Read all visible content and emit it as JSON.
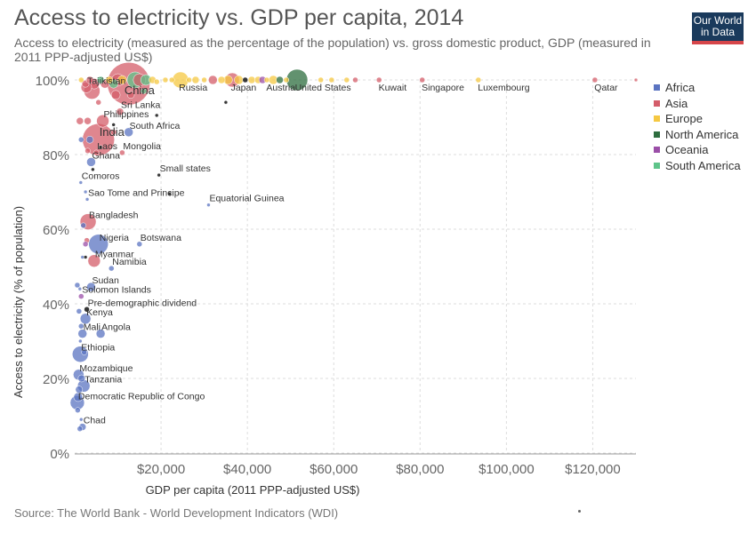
{
  "title": "Access to electricity vs. GDP per capita, 2014",
  "subtitle": "Access to electricity (measured as the percentage of the population) vs. gross domestic product, GDP (measured in 2011 PPP-adjusted US$)",
  "logo": {
    "line1": "Our World",
    "line2": "in Data"
  },
  "source": "Source: The World Bank - World Development Indicators (WDI)",
  "colors": {
    "Africa": "#5b74c1",
    "Asia": "#d45d6a",
    "Europe": "#f5c842",
    "North America": "#2e6e3f",
    "Oceania": "#9b4fa8",
    "South America": "#5ec48a",
    "Other": "#222222"
  },
  "chart_data": {
    "type": "scatter",
    "title": "Access to electricity vs. GDP per capita, 2014",
    "xlabel": "GDP per capita (2011 PPP-adjusted US$)",
    "ylabel": "Access to electricity (% of population)",
    "xlim": [
      0,
      130000
    ],
    "ylim": [
      0,
      100
    ],
    "xticks": [
      20000,
      40000,
      60000,
      80000,
      100000,
      120000
    ],
    "xtick_labels": [
      "$20,000",
      "$40,000",
      "$60,000",
      "$80,000",
      "$100,000",
      "$120,000"
    ],
    "yticks": [
      0,
      20,
      40,
      60,
      80,
      100
    ],
    "ytick_labels": [
      "0%",
      "20%",
      "40%",
      "60%",
      "80%",
      "100%"
    ],
    "legend": {
      "position": "right",
      "entries": [
        "Africa",
        "Asia",
        "Europe",
        "North America",
        "Oceania",
        "South America"
      ]
    },
    "labeled_points": [
      {
        "label": "Tajikistan",
        "x": 2700,
        "y": 98,
        "region": "Asia",
        "size": 6
      },
      {
        "label": "China",
        "x": 12500,
        "y": 99,
        "region": "Asia",
        "size": 24
      },
      {
        "label": "Russia",
        "x": 24500,
        "y": 100,
        "region": "Europe",
        "size": 9
      },
      {
        "label": "Japan",
        "x": 36500,
        "y": 100,
        "region": "Asia",
        "size": 8
      },
      {
        "label": "Austria",
        "x": 44500,
        "y": 100,
        "region": "Europe",
        "size": 3
      },
      {
        "label": "United States",
        "x": 51500,
        "y": 100,
        "region": "North America",
        "size": 12
      },
      {
        "label": "Kuwait",
        "x": 70500,
        "y": 100,
        "region": "Asia",
        "size": 3
      },
      {
        "label": "Singapore",
        "x": 80500,
        "y": 100,
        "region": "Asia",
        "size": 3
      },
      {
        "label": "Luxembourg",
        "x": 93500,
        "y": 100,
        "region": "Europe",
        "size": 3
      },
      {
        "label": "Qatar",
        "x": 120500,
        "y": 100,
        "region": "Asia",
        "size": 3
      },
      {
        "label": "Sri Lanka",
        "x": 10500,
        "y": 91.5,
        "region": "Asia",
        "size": 4
      },
      {
        "label": "Philippines",
        "x": 6500,
        "y": 89,
        "region": "Asia",
        "size": 7
      },
      {
        "label": "South Africa",
        "x": 12500,
        "y": 86,
        "region": "Africa",
        "size": 5
      },
      {
        "label": "India",
        "x": 5500,
        "y": 84,
        "region": "Asia",
        "size": 18
      },
      {
        "label": "Laos",
        "x": 5000,
        "y": 80.5,
        "region": "Asia",
        "size": 3
      },
      {
        "label": "Mongolia",
        "x": 11000,
        "y": 80.5,
        "region": "Asia",
        "size": 3
      },
      {
        "label": "Ghana",
        "x": 3800,
        "y": 78,
        "region": "Africa",
        "size": 5
      },
      {
        "label": "Small states",
        "x": 19500,
        "y": 74.5,
        "region": "Other",
        "size": 2
      },
      {
        "label": "Comoros",
        "x": 1400,
        "y": 72.5,
        "region": "Africa",
        "size": 2
      },
      {
        "label": "Sao Tome and Principe",
        "x": 2900,
        "y": 68,
        "region": "Africa",
        "size": 2
      },
      {
        "label": "Equatorial Guinea",
        "x": 31000,
        "y": 66.5,
        "region": "Africa",
        "size": 2
      },
      {
        "label": "Bangladesh",
        "x": 3100,
        "y": 62,
        "region": "Asia",
        "size": 9
      },
      {
        "label": "Botswana",
        "x": 15000,
        "y": 56,
        "region": "Africa",
        "size": 3
      },
      {
        "label": "Nigeria",
        "x": 5500,
        "y": 56,
        "region": "Africa",
        "size": 11
      },
      {
        "label": "Myanmar",
        "x": 4500,
        "y": 51.5,
        "region": "Asia",
        "size": 7
      },
      {
        "label": "Namibia",
        "x": 8500,
        "y": 49.5,
        "region": "Africa",
        "size": 3
      },
      {
        "label": "Sudan",
        "x": 3800,
        "y": 44.5,
        "region": "Africa",
        "size": 5
      },
      {
        "label": "Solomon Islands",
        "x": 1500,
        "y": 42,
        "region": "Oceania",
        "size": 3
      },
      {
        "label": "Pre-demographic dividend",
        "x": 2800,
        "y": 38.5,
        "region": "Other",
        "size": 3
      },
      {
        "label": "Kenya",
        "x": 2500,
        "y": 36,
        "region": "Africa",
        "size": 6
      },
      {
        "label": "Mali",
        "x": 1800,
        "y": 32,
        "region": "Africa",
        "size": 5
      },
      {
        "label": "Angola",
        "x": 6000,
        "y": 32,
        "region": "Africa",
        "size": 5
      },
      {
        "label": "Ethiopia",
        "x": 1300,
        "y": 26.5,
        "region": "Africa",
        "size": 9
      },
      {
        "label": "Mozambique",
        "x": 900,
        "y": 21,
        "region": "Africa",
        "size": 6
      },
      {
        "label": "Tanzania",
        "x": 2100,
        "y": 18,
        "region": "Africa",
        "size": 7
      },
      {
        "label": "Democratic Republic of Congo",
        "x": 600,
        "y": 13.5,
        "region": "Africa",
        "size": 8
      },
      {
        "label": "Chad",
        "x": 1800,
        "y": 7,
        "region": "Africa",
        "size": 4
      }
    ],
    "points": [
      {
        "x": 1500,
        "y": 100,
        "region": "Europe",
        "size": 3
      },
      {
        "x": 2500,
        "y": 99,
        "region": "Asia",
        "size": 4
      },
      {
        "x": 3500,
        "y": 100,
        "region": "Asia",
        "size": 4
      },
      {
        "x": 4500,
        "y": 99,
        "region": "Asia",
        "size": 6
      },
      {
        "x": 6000,
        "y": 100,
        "region": "South America",
        "size": 4
      },
      {
        "x": 7000,
        "y": 99,
        "region": "Asia",
        "size": 5
      },
      {
        "x": 8000,
        "y": 100,
        "region": "Europe",
        "size": 4
      },
      {
        "x": 9000,
        "y": 99,
        "region": "South America",
        "size": 5
      },
      {
        "x": 10000,
        "y": 100,
        "region": "Asia",
        "size": 7
      },
      {
        "x": 11000,
        "y": 100,
        "region": "Europe",
        "size": 5
      },
      {
        "x": 14000,
        "y": 100,
        "region": "South America",
        "size": 9
      },
      {
        "x": 15000,
        "y": 100,
        "region": "Asia",
        "size": 7
      },
      {
        "x": 16500,
        "y": 100,
        "region": "South America",
        "size": 6
      },
      {
        "x": 18000,
        "y": 100,
        "region": "Europe",
        "size": 4
      },
      {
        "x": 19000,
        "y": 99.5,
        "region": "Europe",
        "size": 3
      },
      {
        "x": 21000,
        "y": 100,
        "region": "Europe",
        "size": 3
      },
      {
        "x": 22500,
        "y": 100,
        "region": "Europe",
        "size": 3
      },
      {
        "x": 26500,
        "y": 100,
        "region": "Europe",
        "size": 3
      },
      {
        "x": 28000,
        "y": 100,
        "region": "Europe",
        "size": 4
      },
      {
        "x": 30000,
        "y": 100,
        "region": "Europe",
        "size": 3
      },
      {
        "x": 32000,
        "y": 100,
        "region": "Asia",
        "size": 5
      },
      {
        "x": 34000,
        "y": 100,
        "region": "Europe",
        "size": 4
      },
      {
        "x": 35500,
        "y": 100,
        "region": "Europe",
        "size": 5
      },
      {
        "x": 38000,
        "y": 100,
        "region": "Europe",
        "size": 5
      },
      {
        "x": 39500,
        "y": 100,
        "region": "Other",
        "size": 3
      },
      {
        "x": 41000,
        "y": 100,
        "region": "Europe",
        "size": 4
      },
      {
        "x": 42500,
        "y": 100,
        "region": "Europe",
        "size": 4
      },
      {
        "x": 43500,
        "y": 100,
        "region": "Oceania",
        "size": 4
      },
      {
        "x": 46000,
        "y": 100,
        "region": "Europe",
        "size": 5
      },
      {
        "x": 47500,
        "y": 100,
        "region": "North America",
        "size": 4
      },
      {
        "x": 49000,
        "y": 100,
        "region": "Europe",
        "size": 3
      },
      {
        "x": 57000,
        "y": 100,
        "region": "Europe",
        "size": 3
      },
      {
        "x": 59500,
        "y": 100,
        "region": "Europe",
        "size": 3
      },
      {
        "x": 63000,
        "y": 100,
        "region": "Europe",
        "size": 3
      },
      {
        "x": 65000,
        "y": 100,
        "region": "Asia",
        "size": 3
      },
      {
        "x": 130000,
        "y": 100,
        "region": "Asia",
        "size": 2
      },
      {
        "x": 35000,
        "y": 94,
        "region": "Other",
        "size": 2
      },
      {
        "x": 4000,
        "y": 97,
        "region": "Asia",
        "size": 9
      },
      {
        "x": 9500,
        "y": 96,
        "region": "Asia",
        "size": 5
      },
      {
        "x": 13000,
        "y": 96,
        "region": "Asia",
        "size": 4
      },
      {
        "x": 16000,
        "y": 97,
        "region": "South America",
        "size": 3
      },
      {
        "x": 5500,
        "y": 94,
        "region": "Asia",
        "size": 3
      },
      {
        "x": 19000,
        "y": 90.5,
        "region": "Other",
        "size": 2
      },
      {
        "x": 1200,
        "y": 89,
        "region": "Asia",
        "size": 4
      },
      {
        "x": 3000,
        "y": 89,
        "region": "Asia",
        "size": 4
      },
      {
        "x": 9000,
        "y": 88,
        "region": "Other",
        "size": 2
      },
      {
        "x": 9000,
        "y": 86,
        "region": "Asia",
        "size": 3
      },
      {
        "x": 1500,
        "y": 84,
        "region": "Africa",
        "size": 3
      },
      {
        "x": 3500,
        "y": 84,
        "region": "Africa",
        "size": 4
      },
      {
        "x": 6000,
        "y": 82,
        "region": "Other",
        "size": 2
      },
      {
        "x": 3000,
        "y": 81,
        "region": "Asia",
        "size": 3
      },
      {
        "x": 4200,
        "y": 76,
        "region": "Other",
        "size": 2
      },
      {
        "x": 2500,
        "y": 70,
        "region": "Africa",
        "size": 2
      },
      {
        "x": 22000,
        "y": 69.5,
        "region": "Other",
        "size": 2
      },
      {
        "x": 2000,
        "y": 61,
        "region": "Africa",
        "size": 3
      },
      {
        "x": 2800,
        "y": 57,
        "region": "Asia",
        "size": 3
      },
      {
        "x": 2500,
        "y": 56,
        "region": "Oceania",
        "size": 3
      },
      {
        "x": 1800,
        "y": 52.5,
        "region": "Africa",
        "size": 2
      },
      {
        "x": 2500,
        "y": 52.5,
        "region": "Other",
        "size": 2
      },
      {
        "x": 600,
        "y": 45,
        "region": "Africa",
        "size": 3
      },
      {
        "x": 1200,
        "y": 44,
        "region": "Africa",
        "size": 2
      },
      {
        "x": 1000,
        "y": 38,
        "region": "Africa",
        "size": 3
      },
      {
        "x": 1500,
        "y": 34,
        "region": "Africa",
        "size": 3
      },
      {
        "x": 1300,
        "y": 30,
        "region": "Africa",
        "size": 2
      },
      {
        "x": 2200,
        "y": 27,
        "region": "Africa",
        "size": 3
      },
      {
        "x": 1600,
        "y": 20,
        "region": "Africa",
        "size": 4
      },
      {
        "x": 1000,
        "y": 17,
        "region": "Africa",
        "size": 4
      },
      {
        "x": 800,
        "y": 15,
        "region": "Africa",
        "size": 5
      },
      {
        "x": 700,
        "y": 11.5,
        "region": "Africa",
        "size": 3
      },
      {
        "x": 1500,
        "y": 9,
        "region": "Africa",
        "size": 2
      },
      {
        "x": 1200,
        "y": 6.5,
        "region": "Africa",
        "size": 3
      }
    ]
  }
}
